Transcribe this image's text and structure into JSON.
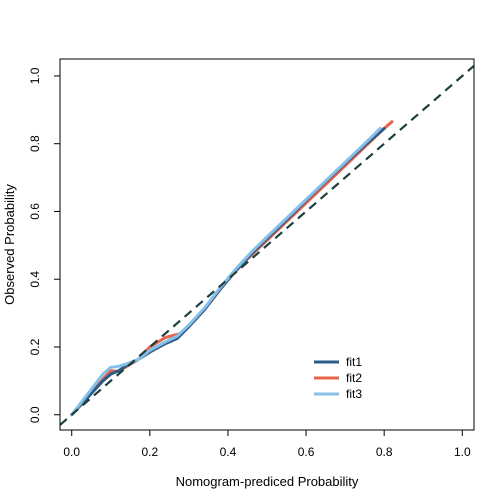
{
  "chart_data": {
    "type": "line",
    "xlabel": "Nomogram-prediced Probability",
    "ylabel": "Observed Probability",
    "xlim": [
      -0.03,
      1.03
    ],
    "ylim": [
      -0.045,
      1.05
    ],
    "x_ticks": [
      0.0,
      0.2,
      0.4,
      0.6,
      0.8,
      1.0
    ],
    "y_ticks": [
      0.0,
      0.2,
      0.4,
      0.6,
      0.8,
      1.0
    ],
    "x_tick_labels": [
      "0.0",
      "0.2",
      "0.4",
      "0.6",
      "0.8",
      "1.0"
    ],
    "y_tick_labels": [
      "0.0",
      "0.2",
      "0.4",
      "0.6",
      "0.8",
      "1.0"
    ],
    "grid": false,
    "legend_position": "bottom-right",
    "reference_line": {
      "style": "dashed",
      "color": "#1f3f3f",
      "x": [
        -0.03,
        1.03
      ],
      "y": [
        -0.03,
        1.03
      ]
    },
    "series": [
      {
        "name": "fit2",
        "color": "#e8634a",
        "x": [
          0.0,
          0.04,
          0.08,
          0.1,
          0.12,
          0.14,
          0.17,
          0.2,
          0.24,
          0.28,
          0.32,
          0.36,
          0.4,
          0.45,
          0.5,
          0.55,
          0.6,
          0.65,
          0.7,
          0.75,
          0.8,
          0.82
        ],
        "y": [
          0.0,
          0.05,
          0.105,
          0.13,
          0.128,
          0.142,
          0.163,
          0.2,
          0.228,
          0.24,
          0.285,
          0.34,
          0.4,
          0.46,
          0.515,
          0.57,
          0.625,
          0.68,
          0.735,
          0.79,
          0.845,
          0.865
        ]
      },
      {
        "name": "fit1",
        "color": "#2b5c8a",
        "x": [
          0.0,
          0.04,
          0.08,
          0.1,
          0.12,
          0.14,
          0.17,
          0.2,
          0.24,
          0.27,
          0.3,
          0.34,
          0.38,
          0.42,
          0.46,
          0.5,
          0.55,
          0.6,
          0.65,
          0.7,
          0.75,
          0.8
        ],
        "y": [
          0.0,
          0.05,
          0.1,
          0.12,
          0.13,
          0.145,
          0.163,
          0.185,
          0.21,
          0.225,
          0.26,
          0.31,
          0.37,
          0.425,
          0.475,
          0.52,
          0.575,
          0.632,
          0.688,
          0.742,
          0.795,
          0.845
        ]
      },
      {
        "name": "fit3",
        "color": "#87bfe6",
        "x": [
          0.0,
          0.04,
          0.08,
          0.1,
          0.12,
          0.14,
          0.17,
          0.2,
          0.24,
          0.27,
          0.3,
          0.34,
          0.38,
          0.42,
          0.46,
          0.5,
          0.55,
          0.6,
          0.65,
          0.7,
          0.75,
          0.79
        ],
        "y": [
          0.0,
          0.06,
          0.12,
          0.14,
          0.143,
          0.15,
          0.163,
          0.19,
          0.215,
          0.232,
          0.265,
          0.315,
          0.375,
          0.43,
          0.48,
          0.525,
          0.58,
          0.635,
          0.69,
          0.745,
          0.8,
          0.845
        ]
      }
    ],
    "legend_order": [
      "fit1",
      "fit2",
      "fit3"
    ]
  }
}
